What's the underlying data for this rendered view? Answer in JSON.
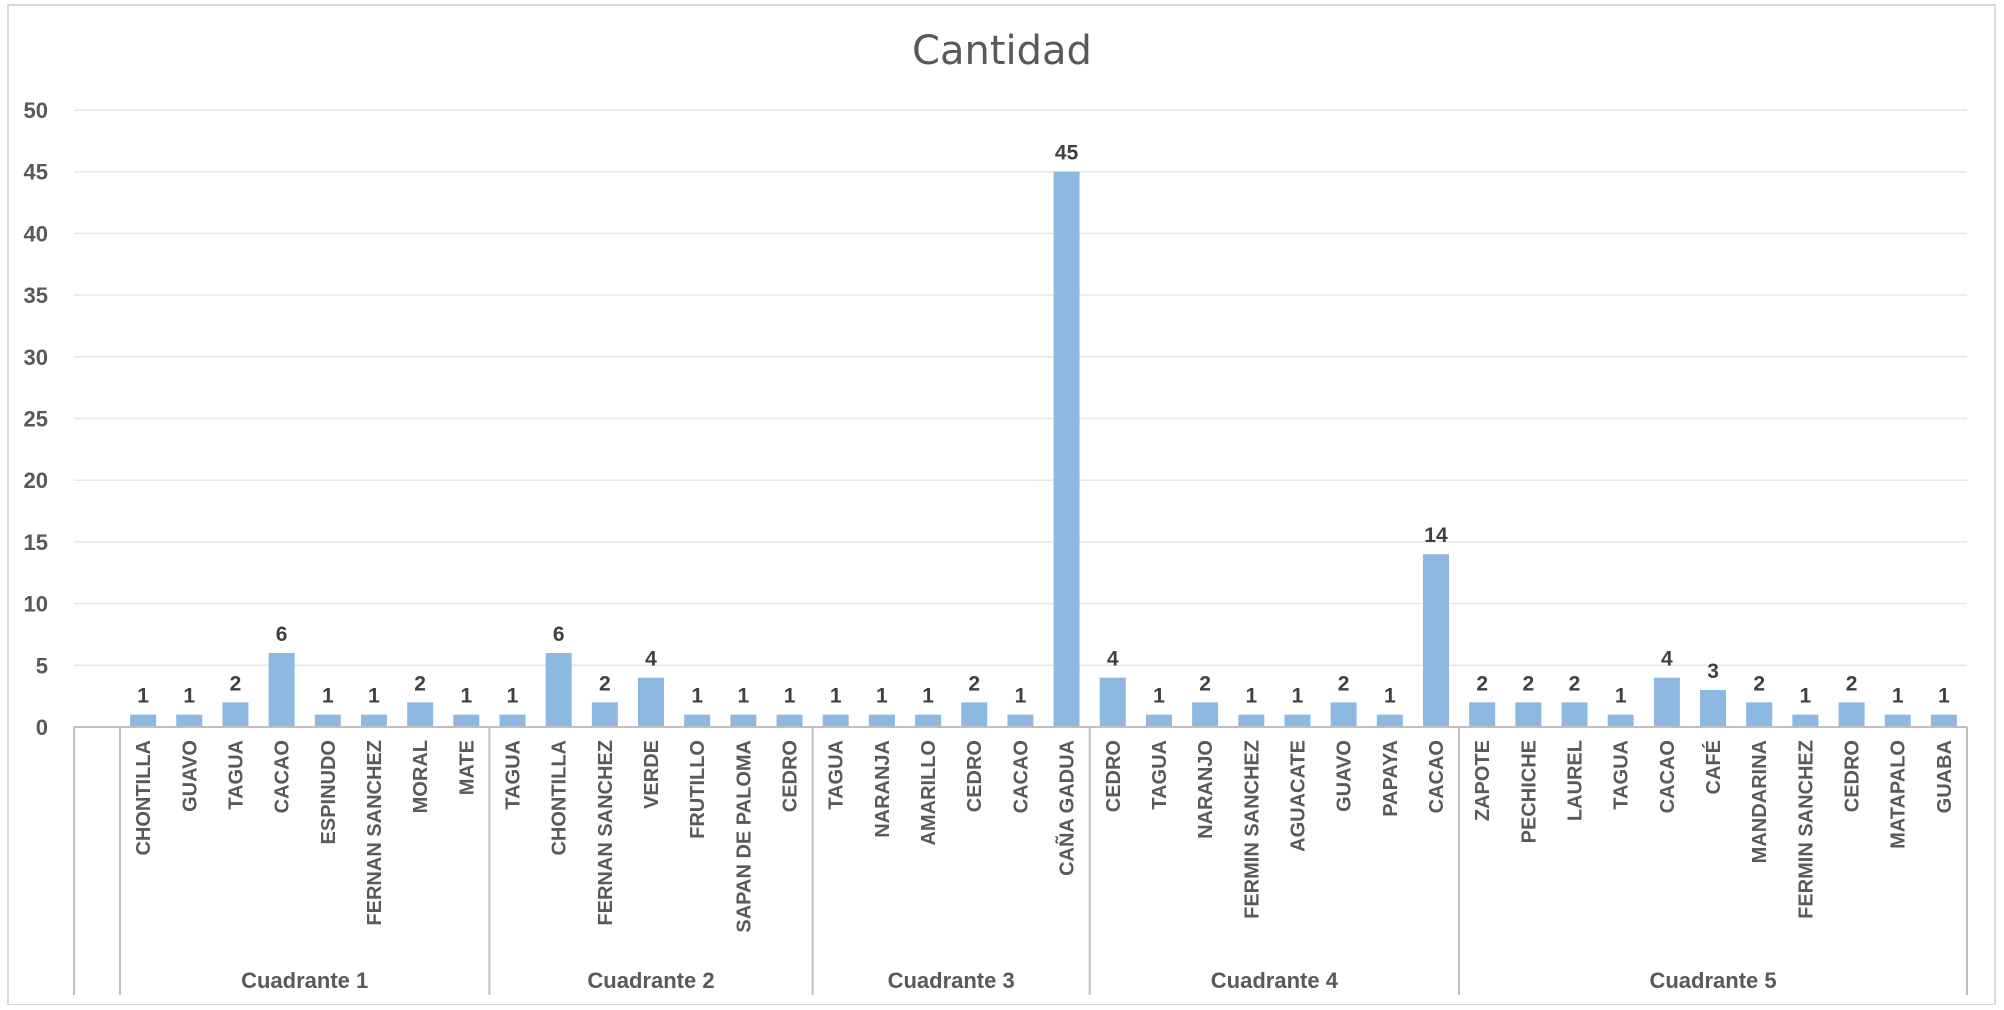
{
  "chart_data": {
    "type": "bar",
    "title": "Cantidad",
    "xlabel": "",
    "ylabel": "",
    "ylim": [
      0,
      50
    ],
    "yticks": [
      0,
      5,
      10,
      15,
      20,
      25,
      30,
      35,
      40,
      45,
      50
    ],
    "grid": true,
    "legend": "none",
    "colors": {
      "bar": "#8db8e2",
      "grid": "#e6e6e6",
      "axis": "#bfbfbf",
      "text": "#595959",
      "data_label": "#404040"
    },
    "groups": [
      {
        "name": "Cuadrante 1",
        "categories": [
          "CHONTILLA",
          "GUAVO",
          "TAGUA",
          "CACAO",
          "ESPINUDO",
          "FERNAN SANCHEZ",
          "MORAL",
          "MATE"
        ],
        "values": [
          1,
          1,
          2,
          6,
          1,
          1,
          2,
          1
        ]
      },
      {
        "name": "Cuadrante 2",
        "categories": [
          "TAGUA",
          "CHONTILLA",
          "FERNAN SANCHEZ",
          "VERDE",
          "FRUTILLO",
          "SAPAN DE PALOMA",
          "CEDRO"
        ],
        "values": [
          1,
          6,
          2,
          4,
          1,
          1,
          1
        ]
      },
      {
        "name": "Cuadrante 3",
        "categories": [
          "TAGUA",
          "NARANJA",
          "AMARILLO",
          "CEDRO",
          "CACAO",
          "CAÑA GADUA"
        ],
        "values": [
          1,
          1,
          1,
          2,
          1,
          45
        ]
      },
      {
        "name": "Cuadrante 4",
        "categories": [
          "CEDRO",
          "TAGUA",
          "NARANJO",
          "FERMIN SANCHEZ",
          "AGUACATE",
          "GUAVO",
          "PAPAYA",
          "CACAO"
        ],
        "values": [
          4,
          1,
          2,
          1,
          1,
          2,
          1,
          14
        ]
      },
      {
        "name": "Cuadrante 5",
        "categories": [
          "ZAPOTE",
          "PECHICHE",
          "LAUREL",
          "TAGUA",
          "CACAO",
          "CAFÉ",
          "MANDARINA",
          "FERMIN SANCHEZ",
          "CEDRO",
          "MATAPALO",
          "GUABA"
        ],
        "values": [
          2,
          2,
          2,
          1,
          4,
          3,
          2,
          1,
          2,
          1,
          1
        ]
      }
    ]
  }
}
